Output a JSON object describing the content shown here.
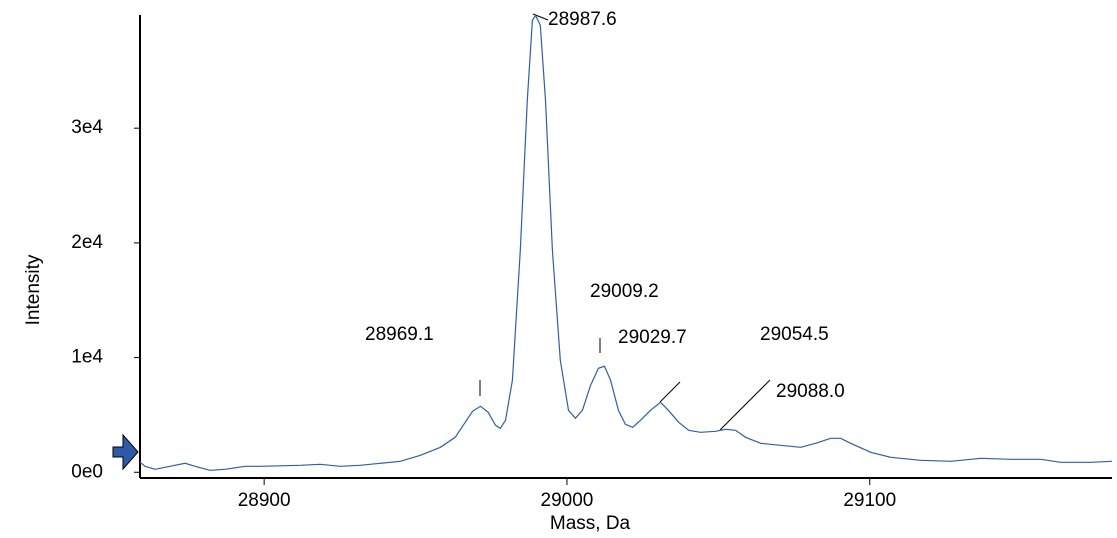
{
  "chart_data": {
    "type": "line",
    "x_label": "Mass, Da",
    "y_label": "Intensity",
    "xlim": [
      28859,
      29180
    ],
    "ylim": [
      -500,
      40000
    ],
    "xticks": [
      28900,
      29000,
      29100
    ],
    "yticks": [
      {
        "value": 0,
        "label": "0e0"
      },
      {
        "value": 10000,
        "label": "1e4"
      },
      {
        "value": 20000,
        "label": "2e4"
      },
      {
        "value": 30000,
        "label": "3e4"
      }
    ],
    "series": [
      {
        "color": "#2f5fa8",
        "x": [
          28859,
          28860.7,
          28864.0,
          28868.9,
          28873.9,
          28877.2,
          28882.1,
          28887.1,
          28893.7,
          28898.7,
          28911.9,
          28918.5,
          28925.1,
          28931.7,
          28938.3,
          28945.0,
          28951.6,
          28958.2,
          28963.1,
          28966.4,
          28968.8,
          28971.4,
          28974.0,
          28976.4,
          28978.0,
          28979.7,
          28982.0,
          28984.6,
          28986.9,
          28988.6,
          28989.6,
          28991.2,
          28992.9,
          28995.2,
          28997.8,
          29000.5,
          29002.8,
          29005.1,
          29007.8,
          29010.4,
          29012.4,
          29014.4,
          29017.0,
          29019.3,
          29021.7,
          29024.3,
          29027.6,
          29030.9,
          29033.5,
          29036.9,
          29040.2,
          29044.1,
          29049.1,
          29052.4,
          29055.7,
          29059.0,
          29064.0,
          29070.6,
          29077.2,
          29082.1,
          29087.1,
          29090.4,
          29093.7,
          29100.3,
          29106.9,
          29116.8,
          29126.8,
          29136.7,
          29146.6,
          29156.5,
          29163.1,
          29173.0,
          29180
        ],
        "values": [
          873,
          523,
          262,
          523,
          785,
          523,
          174,
          262,
          523,
          523,
          610,
          697,
          523,
          610,
          785,
          959,
          1482,
          2179,
          3051,
          4359,
          5318,
          5754,
          5231,
          4097,
          3836,
          4533,
          8021,
          19353,
          32430,
          39405,
          39841,
          38969,
          32430,
          19353,
          9767,
          5406,
          4708,
          5406,
          7585,
          9068,
          9242,
          8021,
          5406,
          4185,
          3923,
          4533,
          5406,
          6103,
          5406,
          4359,
          3662,
          3487,
          3574,
          3749,
          3662,
          3051,
          2528,
          2354,
          2179,
          2528,
          2964,
          2964,
          2528,
          1744,
          1308,
          1046,
          959,
          1220,
          1133,
          1133,
          872,
          872,
          959
        ]
      }
    ],
    "annotations": [
      "28969.1",
      "28987.6",
      "29009.2",
      "29029.7",
      "29054.5",
      "29088.0"
    ]
  }
}
